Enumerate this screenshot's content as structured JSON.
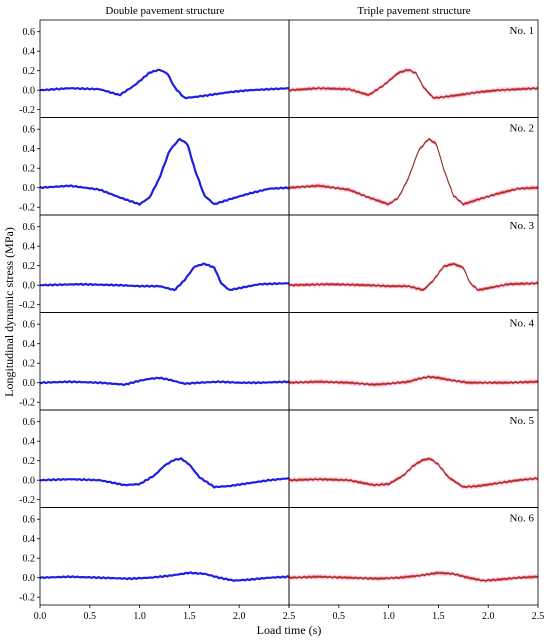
{
  "chart_data": {
    "type": "line",
    "xlabel": "Load time (s)",
    "ylabel": "Longitudinal dynamic stress (MPa)",
    "column_titles": [
      "Double pavement structure",
      "Triple pavement structure"
    ],
    "xlim": [
      0.0,
      2.5
    ],
    "ylim": [
      -0.28,
      0.72
    ],
    "x_ticks": [
      0.0,
      0.5,
      1.0,
      1.5,
      2.0,
      2.5
    ],
    "y_ticks": [
      -0.2,
      0.0,
      0.2,
      0.4,
      0.6
    ],
    "x_tick_labels": [
      "0.0",
      "0.5",
      "1.0",
      "1.5",
      "2.0",
      "2.5"
    ],
    "x_tick_labels_right": [
      "",
      "0.5",
      "1.0",
      "1.5",
      "2.0",
      "2.5"
    ],
    "y_tick_labels": [
      "-0.2",
      "0.0",
      "0.2",
      "0.4",
      "0.6"
    ],
    "grid": false,
    "colors": {
      "double": "#1f1fe0",
      "triple_line": "#7a3a1c",
      "triple_band": "#ff1a1a",
      "triple_halo": "#ffc8f0"
    },
    "panels": [
      {
        "label": "No. 1",
        "double": {
          "x": [
            0.0,
            0.3,
            0.6,
            0.8,
            0.95,
            1.1,
            1.2,
            1.28,
            1.35,
            1.45,
            1.55,
            1.7,
            1.9,
            2.1,
            2.3,
            2.5
          ],
          "y": [
            0.0,
            0.02,
            0.01,
            -0.05,
            0.05,
            0.18,
            0.21,
            0.17,
            0.03,
            -0.08,
            -0.07,
            -0.05,
            -0.02,
            0.0,
            0.01,
            0.02
          ]
        },
        "triple": {
          "x": [
            0.0,
            0.3,
            0.6,
            0.8,
            0.95,
            1.1,
            1.2,
            1.28,
            1.35,
            1.45,
            1.55,
            1.7,
            1.9,
            2.1,
            2.3,
            2.5
          ],
          "y": [
            0.0,
            0.02,
            0.01,
            -0.05,
            0.05,
            0.18,
            0.21,
            0.17,
            0.03,
            -0.08,
            -0.07,
            -0.05,
            -0.02,
            0.0,
            0.01,
            0.02
          ]
        }
      },
      {
        "label": "No. 2",
        "double": {
          "x": [
            0.0,
            0.3,
            0.6,
            0.8,
            1.0,
            1.1,
            1.2,
            1.3,
            1.4,
            1.48,
            1.55,
            1.65,
            1.75,
            1.9,
            2.1,
            2.3,
            2.5
          ],
          "y": [
            0.0,
            0.02,
            -0.02,
            -0.1,
            -0.17,
            -0.1,
            0.1,
            0.38,
            0.5,
            0.45,
            0.2,
            -0.08,
            -0.17,
            -0.12,
            -0.06,
            -0.01,
            0.0
          ]
        },
        "triple": {
          "x": [
            0.0,
            0.3,
            0.6,
            0.8,
            1.0,
            1.1,
            1.2,
            1.3,
            1.4,
            1.48,
            1.55,
            1.65,
            1.75,
            1.9,
            2.1,
            2.3,
            2.5
          ],
          "y": [
            0.0,
            0.02,
            -0.02,
            -0.1,
            -0.17,
            -0.1,
            0.1,
            0.38,
            0.5,
            0.45,
            0.2,
            -0.08,
            -0.17,
            -0.12,
            -0.06,
            -0.01,
            0.0
          ]
        }
      },
      {
        "label": "No. 3",
        "double": {
          "x": [
            0.0,
            0.4,
            0.8,
            1.0,
            1.2,
            1.35,
            1.45,
            1.55,
            1.65,
            1.75,
            1.82,
            1.9,
            2.0,
            2.2,
            2.5
          ],
          "y": [
            0.0,
            0.01,
            0.0,
            -0.01,
            -0.01,
            -0.05,
            0.05,
            0.19,
            0.22,
            0.18,
            0.02,
            -0.05,
            -0.03,
            0.01,
            0.02
          ]
        },
        "triple": {
          "x": [
            0.0,
            0.4,
            0.8,
            1.0,
            1.2,
            1.35,
            1.45,
            1.55,
            1.65,
            1.75,
            1.82,
            1.9,
            2.0,
            2.2,
            2.5
          ],
          "y": [
            0.0,
            0.01,
            0.0,
            -0.01,
            -0.01,
            -0.05,
            0.05,
            0.19,
            0.22,
            0.18,
            0.02,
            -0.05,
            -0.03,
            0.01,
            0.02
          ]
        }
      },
      {
        "label": "No. 4",
        "double": {
          "x": [
            0.0,
            0.3,
            0.6,
            0.85,
            1.0,
            1.1,
            1.2,
            1.3,
            1.45,
            1.6,
            1.8,
            2.0,
            2.2,
            2.5
          ],
          "y": [
            0.0,
            0.01,
            0.0,
            -0.02,
            0.02,
            0.04,
            0.05,
            0.03,
            -0.01,
            0.0,
            0.01,
            0.0,
            0.0,
            0.01
          ]
        },
        "triple": {
          "x": [
            0.0,
            0.3,
            0.6,
            0.85,
            1.0,
            1.2,
            1.3,
            1.4,
            1.5,
            1.6,
            1.8,
            2.0,
            2.2,
            2.5
          ],
          "y": [
            0.0,
            0.01,
            0.0,
            -0.02,
            -0.01,
            0.01,
            0.04,
            0.06,
            0.05,
            0.03,
            0.0,
            0.0,
            0.0,
            0.01
          ]
        }
      },
      {
        "label": "No. 5",
        "double": {
          "x": [
            0.0,
            0.3,
            0.6,
            0.85,
            1.0,
            1.15,
            1.25,
            1.35,
            1.42,
            1.5,
            1.6,
            1.75,
            1.9,
            2.1,
            2.3,
            2.5
          ],
          "y": [
            0.0,
            0.01,
            0.0,
            -0.05,
            -0.04,
            0.05,
            0.15,
            0.21,
            0.22,
            0.16,
            0.03,
            -0.07,
            -0.06,
            -0.03,
            0.0,
            0.02
          ]
        },
        "triple": {
          "x": [
            0.0,
            0.3,
            0.6,
            0.85,
            1.0,
            1.15,
            1.25,
            1.35,
            1.42,
            1.5,
            1.6,
            1.75,
            1.9,
            2.1,
            2.3,
            2.5
          ],
          "y": [
            0.0,
            0.01,
            0.0,
            -0.05,
            -0.04,
            0.05,
            0.15,
            0.21,
            0.22,
            0.16,
            0.03,
            -0.07,
            -0.06,
            -0.03,
            0.0,
            0.02
          ]
        }
      },
      {
        "label": "No. 6",
        "double": {
          "x": [
            0.0,
            0.3,
            0.6,
            0.9,
            1.1,
            1.3,
            1.5,
            1.65,
            1.8,
            1.95,
            2.1,
            2.3,
            2.5
          ],
          "y": [
            0.0,
            0.01,
            0.0,
            -0.01,
            0.0,
            0.02,
            0.05,
            0.04,
            0.0,
            -0.03,
            -0.02,
            0.0,
            0.01
          ]
        },
        "triple": {
          "x": [
            0.0,
            0.3,
            0.6,
            0.9,
            1.1,
            1.3,
            1.5,
            1.65,
            1.8,
            1.95,
            2.1,
            2.3,
            2.5
          ],
          "y": [
            0.0,
            0.01,
            0.0,
            -0.01,
            0.0,
            0.02,
            0.05,
            0.04,
            0.0,
            -0.03,
            -0.02,
            0.0,
            0.01
          ]
        }
      }
    ]
  }
}
